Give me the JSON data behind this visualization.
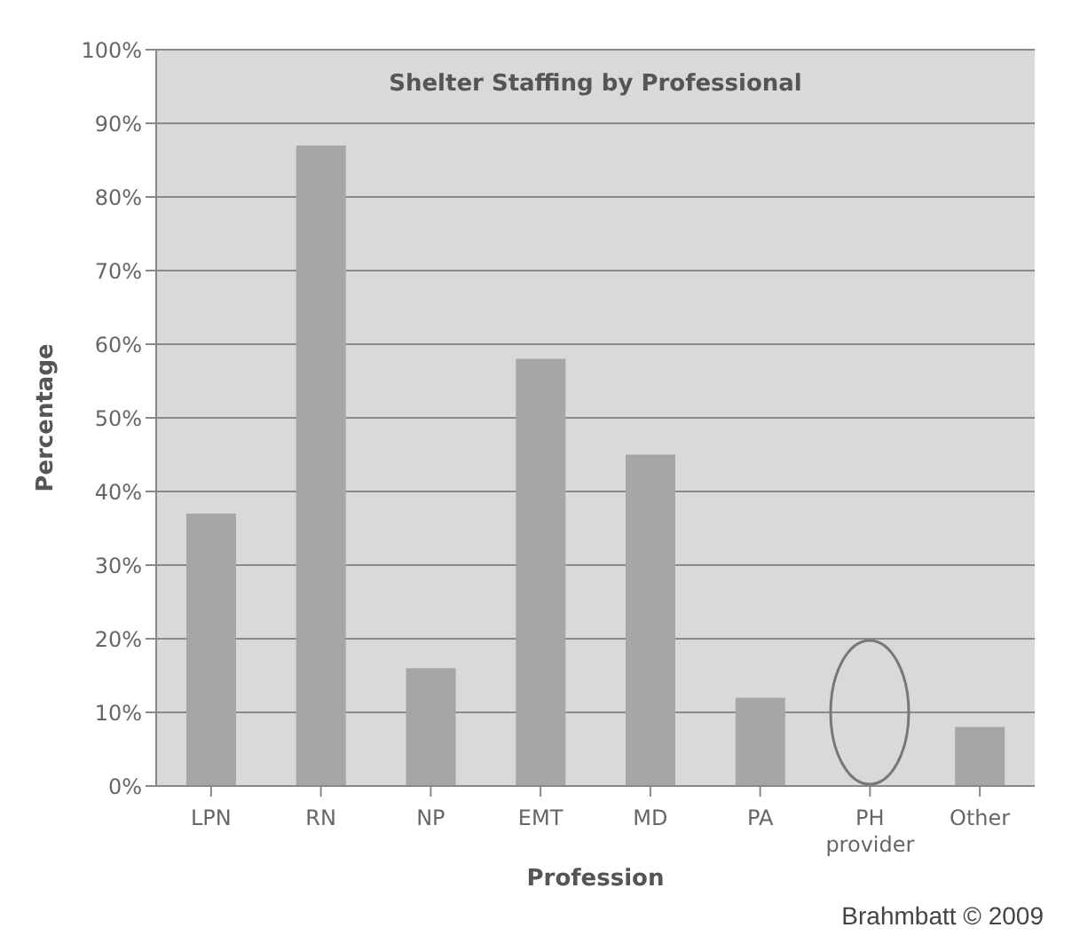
{
  "chart_data": {
    "type": "bar",
    "title": "Shelter Staffing by Professional",
    "xlabel": "Profession",
    "ylabel": "Percentage",
    "categories": [
      "LPN",
      "RN",
      "NP",
      "EMT",
      "MD",
      "PA",
      "PH provider",
      "Other"
    ],
    "values": [
      37,
      87,
      16,
      58,
      45,
      12,
      0,
      8
    ],
    "color": "#a6a6a6",
    "ylim": [
      0,
      100
    ],
    "yticks": [
      {
        "value": 0,
        "label": "0%"
      },
      {
        "value": 10,
        "label": "10%"
      },
      {
        "value": 20,
        "label": "20%"
      },
      {
        "value": 30,
        "label": "30%"
      },
      {
        "value": 40,
        "label": "40%"
      },
      {
        "value": 50,
        "label": "50%"
      },
      {
        "value": 60,
        "label": "60%"
      },
      {
        "value": 70,
        "label": "70%"
      },
      {
        "value": 80,
        "label": "80%"
      },
      {
        "value": 90,
        "label": "90%"
      },
      {
        "value": 100,
        "label": "100%"
      }
    ],
    "grid": "y",
    "annotations": [
      "Brahmbatt © 2009"
    ]
  }
}
